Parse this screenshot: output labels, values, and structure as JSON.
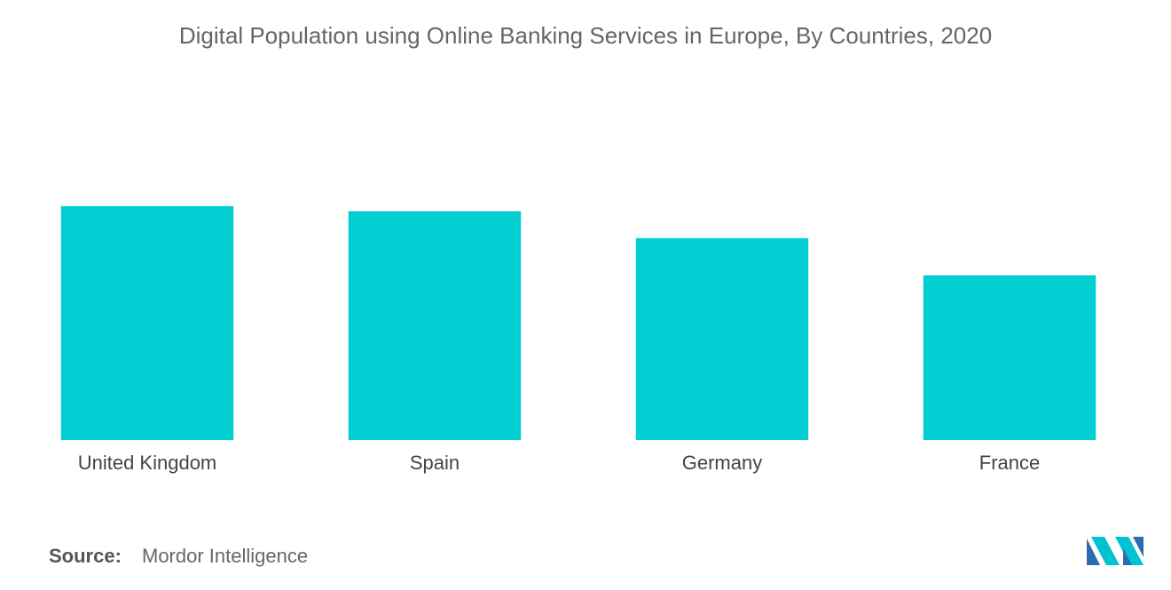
{
  "chart_data": {
    "type": "bar",
    "title": "Digital Population using Online Banking Services in Europe, By Countries, 2020",
    "categories": [
      "United Kingdom",
      "Spain",
      "Germany",
      "France"
    ],
    "values": [
      76,
      74.3,
      65.6,
      53.5
    ],
    "color": "#00ced1",
    "ylim": [
      0,
      100
    ],
    "source_label": "Source:",
    "source": "Mordor Intelligence"
  }
}
